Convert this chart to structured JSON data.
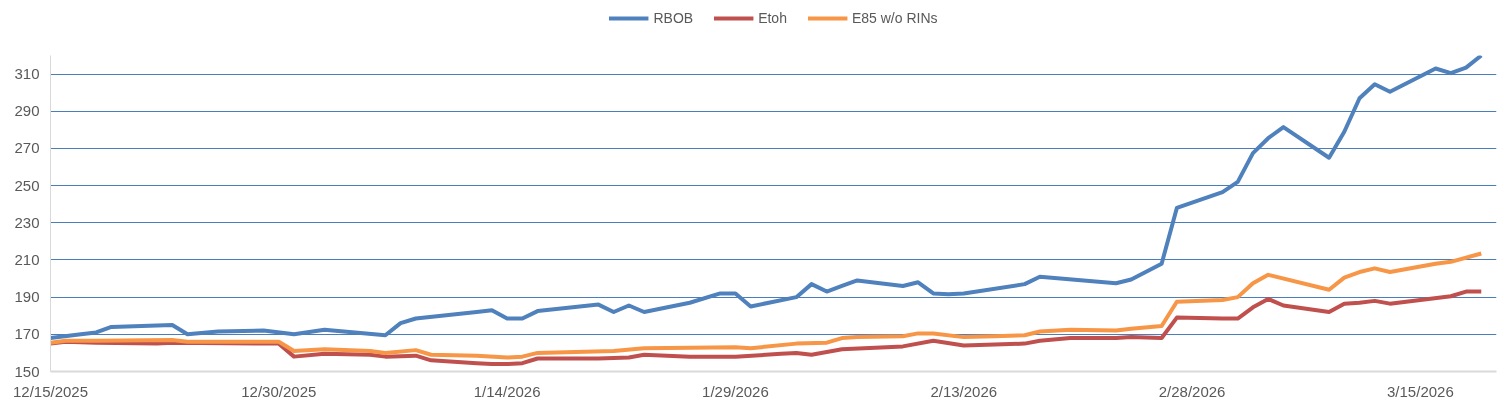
{
  "chart_data": {
    "type": "line",
    "legend": "top",
    "grid": "y",
    "line_style": "solid",
    "marker": "none",
    "xlim": [
      "2025-12-15",
      "2026-03-20"
    ],
    "xticks": [
      {
        "value": "2025-12-15",
        "label": "12/15/2025"
      },
      {
        "value": "2025-12-30",
        "label": "12/30/2025"
      },
      {
        "value": "2026-01-14",
        "label": "1/14/2026"
      },
      {
        "value": "2026-01-29",
        "label": "1/29/2026"
      },
      {
        "value": "2026-02-13",
        "label": "2/13/2026"
      },
      {
        "value": "2026-02-28",
        "label": "2/28/2026"
      },
      {
        "value": "2026-03-15",
        "label": "3/15/2026"
      }
    ],
    "ylim": [
      150,
      320
    ],
    "yticks": [
      150,
      170,
      190,
      210,
      230,
      250,
      270,
      290,
      310
    ],
    "series": [
      {
        "name": "RBOB",
        "color": "#4f81bd",
        "x": [
          "2025-12-15",
          "2025-12-17",
          "2025-12-18",
          "2025-12-19",
          "2025-12-23",
          "2025-12-24",
          "2025-12-26",
          "2025-12-29",
          "2025-12-31",
          "2026-01-02",
          "2026-01-06",
          "2026-01-07",
          "2026-01-08",
          "2026-01-12",
          "2026-01-13",
          "2026-01-14",
          "2026-01-15",
          "2026-01-16",
          "2026-01-20",
          "2026-01-21",
          "2026-01-22",
          "2026-01-23",
          "2026-01-26",
          "2026-01-28",
          "2026-01-29",
          "2026-01-30",
          "2026-02-02",
          "2026-02-03",
          "2026-02-04",
          "2026-02-05",
          "2026-02-06",
          "2026-02-09",
          "2026-02-10",
          "2026-02-11",
          "2026-02-12",
          "2026-02-13",
          "2026-02-17",
          "2026-02-18",
          "2026-02-23",
          "2026-02-24",
          "2026-02-26",
          "2026-02-27",
          "2026-03-02",
          "2026-03-03",
          "2026-03-04",
          "2026-03-05",
          "2026-03-06",
          "2026-03-09",
          "2026-03-10",
          "2026-03-11",
          "2026-03-12",
          "2026-03-13",
          "2026-03-16",
          "2026-03-17",
          "2026-03-18",
          "2026-03-19"
        ],
        "values": [
          168,
          170,
          171,
          174,
          175,
          170,
          171.5,
          172,
          170,
          172.5,
          169.5,
          176,
          178.5,
          182,
          183,
          178.5,
          178.5,
          182.5,
          186,
          182,
          185.5,
          182,
          187,
          192,
          192,
          185,
          190,
          197,
          193,
          196,
          199,
          196,
          198,
          192,
          191.5,
          192,
          197,
          201,
          197.5,
          199.5,
          208,
          238,
          246.5,
          252,
          267.5,
          275.5,
          281.5,
          265,
          279,
          297,
          304.5,
          300.5,
          313,
          310.5,
          313.5,
          320
        ]
      },
      {
        "name": "Etoh",
        "color": "#c0504d",
        "x": [
          "2025-12-15",
          "2025-12-16",
          "2025-12-18",
          "2025-12-22",
          "2025-12-23",
          "2025-12-30",
          "2025-12-31",
          "2026-01-02",
          "2026-01-05",
          "2026-01-06",
          "2026-01-08",
          "2026-01-09",
          "2026-01-12",
          "2026-01-13",
          "2026-01-14",
          "2026-01-15",
          "2026-01-16",
          "2026-01-20",
          "2026-01-22",
          "2026-01-23",
          "2026-01-26",
          "2026-01-29",
          "2026-02-01",
          "2026-02-02",
          "2026-02-03",
          "2026-02-05",
          "2026-02-09",
          "2026-02-11",
          "2026-02-13",
          "2026-02-17",
          "2026-02-18",
          "2026-02-20",
          "2026-02-23",
          "2026-02-24",
          "2026-02-26",
          "2026-02-27",
          "2026-03-02",
          "2026-03-03",
          "2026-03-04",
          "2026-03-05",
          "2026-03-06",
          "2026-03-09",
          "2026-03-10",
          "2026-03-11",
          "2026-03-12",
          "2026-03-13",
          "2026-03-17",
          "2026-03-18",
          "2026-03-19"
        ],
        "values": [
          165,
          166,
          165.5,
          165,
          165.5,
          165,
          158,
          159.5,
          159,
          158,
          158.5,
          156,
          154.5,
          154,
          154,
          154.5,
          157,
          157,
          157.5,
          159,
          158,
          158,
          159.5,
          160,
          159,
          162,
          163.5,
          166.5,
          164,
          165,
          166.5,
          168,
          168,
          168.5,
          168,
          179,
          178.5,
          178.5,
          184.5,
          189,
          185.5,
          182,
          186.5,
          187,
          188,
          186.5,
          190.5,
          193,
          193
        ]
      },
      {
        "name": "E85 w/o RINs",
        "color": "#f79646",
        "x": [
          "2025-12-15",
          "2025-12-16",
          "2025-12-18",
          "2025-12-23",
          "2025-12-24",
          "2025-12-30",
          "2025-12-31",
          "2026-01-02",
          "2026-01-05",
          "2026-01-06",
          "2026-01-08",
          "2026-01-09",
          "2026-01-12",
          "2026-01-14",
          "2026-01-15",
          "2026-01-16",
          "2026-01-21",
          "2026-01-23",
          "2026-01-29",
          "2026-01-30",
          "2026-02-02",
          "2026-02-04",
          "2026-02-05",
          "2026-02-06",
          "2026-02-09",
          "2026-02-10",
          "2026-02-11",
          "2026-02-13",
          "2026-02-15",
          "2026-02-17",
          "2026-02-18",
          "2026-02-20",
          "2026-02-23",
          "2026-02-24",
          "2026-02-26",
          "2026-02-27",
          "2026-03-02",
          "2026-03-03",
          "2026-03-04",
          "2026-03-05",
          "2026-03-09",
          "2026-03-10",
          "2026-03-11",
          "2026-03-12",
          "2026-03-13",
          "2026-03-16",
          "2026-03-17",
          "2026-03-19"
        ],
        "values": [
          165.5,
          166.5,
          166.5,
          167,
          166,
          166,
          161,
          162,
          161,
          160,
          161.5,
          159,
          158.5,
          157.5,
          158,
          160,
          161,
          162.5,
          163,
          162.5,
          165,
          165.5,
          168,
          168.5,
          169,
          170.5,
          170.5,
          168.5,
          169,
          169.5,
          171.5,
          172.5,
          172,
          173,
          174.5,
          187.5,
          188.5,
          190,
          197.5,
          202,
          194,
          200.5,
          203.5,
          205.5,
          203.5,
          208,
          209,
          213.5
        ]
      }
    ]
  }
}
